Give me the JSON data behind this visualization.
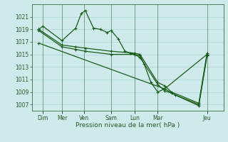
{
  "bg_color": "#ceeaea",
  "grid_color": "#aad4d4",
  "line_color": "#1a5c1a",
  "marker_color": "#1a5c1a",
  "xlabel": "Pression niveau de la mer( hPa )",
  "ylim": [
    1006,
    1023
  ],
  "yticks": [
    1007,
    1009,
    1011,
    1013,
    1015,
    1017,
    1019,
    1021
  ],
  "xlim": [
    0,
    14
  ],
  "xtick_positions": [
    0.8,
    2.2,
    3.8,
    5.8,
    7.5,
    9.2,
    12.8
  ],
  "xtick_labels": [
    "Dim",
    "Mer",
    "Ven",
    "Sam",
    "Lun",
    "Mar",
    "Jeu"
  ],
  "series1_x": [
    0.5,
    0.8,
    2.2,
    3.2,
    3.6,
    3.9,
    4.5,
    5.0,
    5.5,
    5.8,
    6.3,
    6.8,
    7.2,
    7.5,
    7.9,
    8.2,
    8.7,
    9.2,
    9.7,
    12.8
  ],
  "series1_y": [
    1019,
    1019.5,
    1017.2,
    1019.2,
    1021.5,
    1022.0,
    1019.2,
    1019.0,
    1018.5,
    1018.8,
    1017.5,
    1015.5,
    1015.2,
    1015.0,
    1014.8,
    1013.5,
    1010.5,
    1009.0,
    1009.5,
    1015.0
  ],
  "series2_x": [
    0.5,
    2.2,
    3.2,
    3.9,
    5.8,
    7.5,
    7.9,
    9.2,
    9.7,
    10.2,
    12.2,
    12.8
  ],
  "series2_y": [
    1019,
    1016.5,
    1016.2,
    1016.0,
    1015.5,
    1015.2,
    1015.0,
    1010.5,
    1010.0,
    1009.0,
    1007.2,
    1015.2
  ],
  "series3_x": [
    0.5,
    2.2,
    3.2,
    3.9,
    5.8,
    7.5,
    7.9,
    9.2,
    9.7,
    10.2,
    12.2,
    12.8
  ],
  "series3_y": [
    1018.8,
    1016.2,
    1015.8,
    1015.5,
    1015.0,
    1015.0,
    1014.5,
    1010.2,
    1009.2,
    1008.8,
    1006.8,
    1014.8
  ],
  "series4_x": [
    0.5,
    9.7,
    10.5,
    12.2,
    12.8
  ],
  "series4_y": [
    1016.8,
    1009.5,
    1008.5,
    1007.0,
    1015.0
  ],
  "spine_color": "#3a6f3a",
  "tick_label_color": "#2a5a2a",
  "tick_fontsize": 5.5,
  "xlabel_fontsize": 6.5
}
